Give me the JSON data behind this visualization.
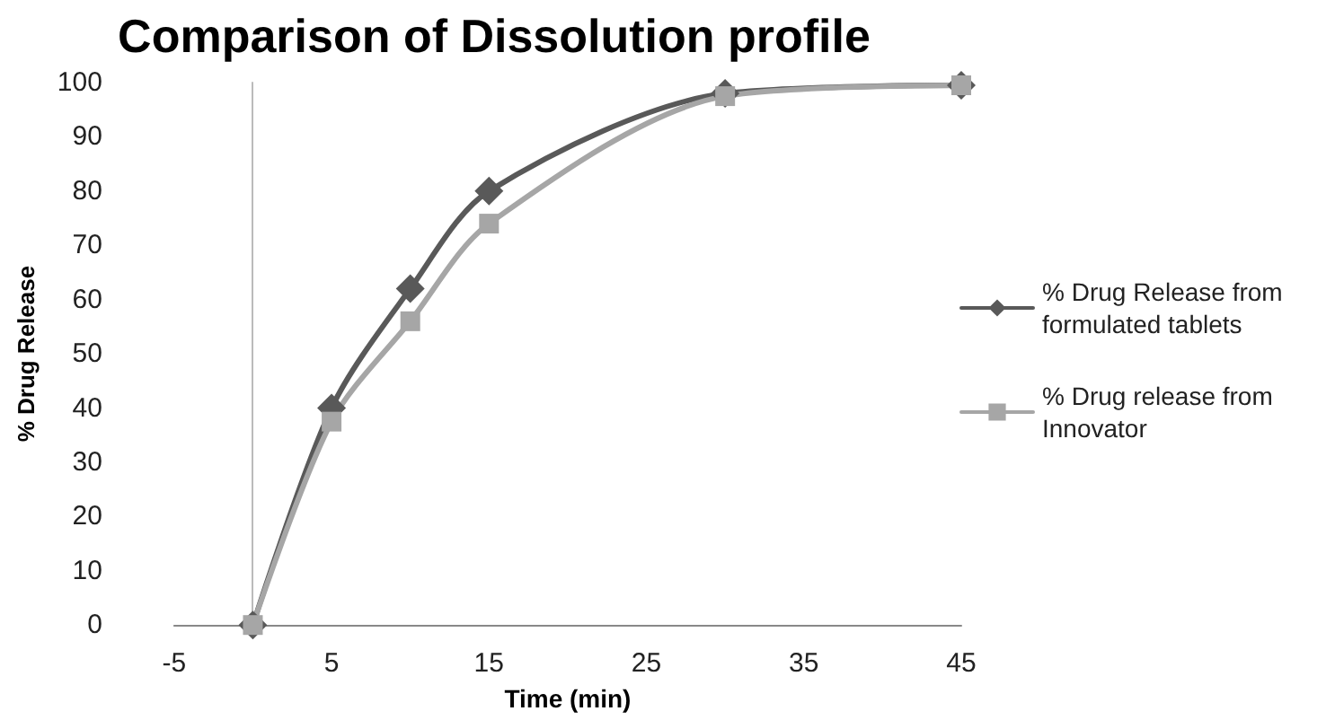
{
  "chart_data": {
    "type": "line",
    "title": "Comparison of Dissolution profile",
    "xlabel": "Time (min)",
    "ylabel": "% Drug Release",
    "x": [
      0,
      5,
      10,
      15,
      30,
      45
    ],
    "series": [
      {
        "name": "% Drug Release from formulated tablets",
        "color": "#595959",
        "marker": "diamond",
        "values": [
          0,
          40,
          62,
          80,
          98,
          99.5
        ]
      },
      {
        "name": "% Drug release from Innovator",
        "color": "#a6a6a6",
        "marker": "square",
        "values": [
          0,
          37.5,
          56,
          74,
          97.5,
          99.5
        ]
      }
    ],
    "xlim": [
      -5,
      45
    ],
    "xticks": [
      -5,
      5,
      15,
      25,
      35,
      45
    ],
    "ylim": [
      0,
      100
    ],
    "yticks": [
      0,
      10,
      20,
      30,
      40,
      50,
      60,
      70,
      80,
      90,
      100
    ],
    "grid": false,
    "legend": "right",
    "line_style": "solid"
  }
}
